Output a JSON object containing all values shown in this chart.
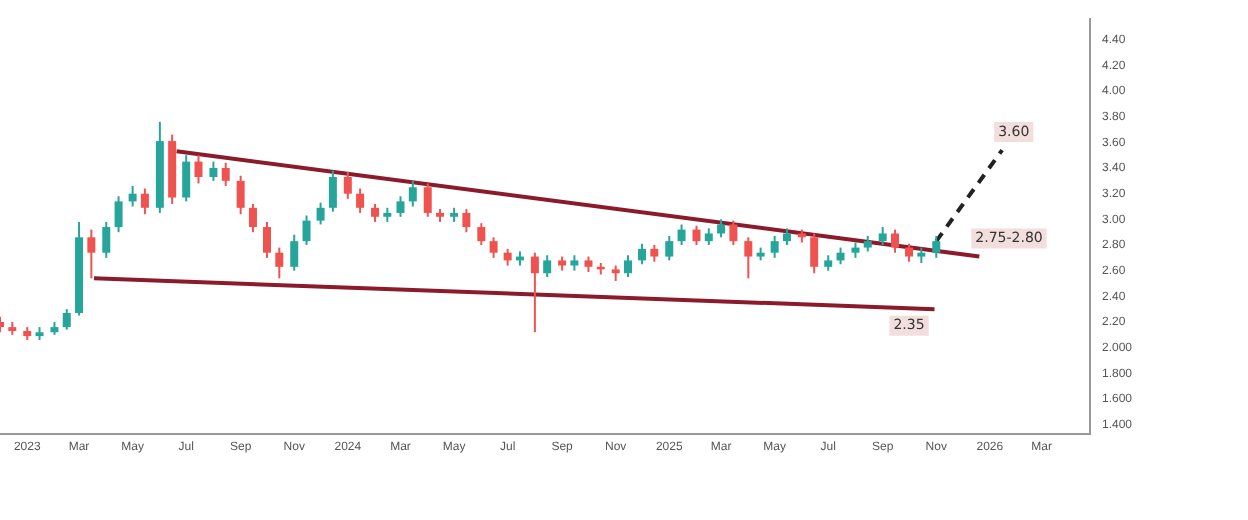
{
  "chart_data": {
    "type": "candlestick",
    "xlim": [
      "2022-12-01",
      "2026-04-25"
    ],
    "xticks": [
      {
        "value": "2023-01-01",
        "label": "2023"
      },
      {
        "value": "2023-03-01",
        "label": "Mar"
      },
      {
        "value": "2023-05-01",
        "label": "May"
      },
      {
        "value": "2023-07-01",
        "label": "Jul"
      },
      {
        "value": "2023-09-01",
        "label": "Sep"
      },
      {
        "value": "2023-11-01",
        "label": "Nov"
      },
      {
        "value": "2024-01-01",
        "label": "2024"
      },
      {
        "value": "2024-03-01",
        "label": "Mar"
      },
      {
        "value": "2024-05-01",
        "label": "May"
      },
      {
        "value": "2024-07-01",
        "label": "Jul"
      },
      {
        "value": "2024-09-01",
        "label": "Sep"
      },
      {
        "value": "2024-11-01",
        "label": "Nov"
      },
      {
        "value": "2025-01-01",
        "label": "2025"
      },
      {
        "value": "2025-03-01",
        "label": "Mar"
      },
      {
        "value": "2025-05-01",
        "label": "May"
      },
      {
        "value": "2025-07-01",
        "label": "Jul"
      },
      {
        "value": "2025-09-01",
        "label": "Sep"
      },
      {
        "value": "2025-11-01",
        "label": "Nov"
      },
      {
        "value": "2026-01-01",
        "label": "2026"
      },
      {
        "value": "2026-03-01",
        "label": "Mar"
      }
    ],
    "ylim": [
      1.33,
      4.56
    ],
    "yticks": [
      {
        "value": 1.4,
        "label": "1.400"
      },
      {
        "value": 1.6,
        "label": "1.600"
      },
      {
        "value": 1.8,
        "label": "1.800"
      },
      {
        "value": 2.0,
        "label": "2.000"
      },
      {
        "value": 2.2,
        "label": "2.20"
      },
      {
        "value": 2.4,
        "label": "2.40"
      },
      {
        "value": 2.6,
        "label": "2.60"
      },
      {
        "value": 2.8,
        "label": "2.80"
      },
      {
        "value": 3.0,
        "label": "3.00"
      },
      {
        "value": 3.2,
        "label": "3.20"
      },
      {
        "value": 3.4,
        "label": "3.40"
      },
      {
        "value": 3.6,
        "label": "3.60"
      },
      {
        "value": 3.8,
        "label": "3.80"
      },
      {
        "value": 4.0,
        "label": "4.00"
      },
      {
        "value": 4.2,
        "label": "4.20"
      },
      {
        "value": 4.4,
        "label": "4.40"
      }
    ],
    "grid": false,
    "legend": false,
    "x": [
      "2022-12-01",
      "2022-12-15",
      "2023-01-01",
      "2023-01-15",
      "2023-02-01",
      "2023-02-15",
      "2023-03-01",
      "2023-03-15",
      "2023-04-01",
      "2023-04-15",
      "2023-05-01",
      "2023-05-15",
      "2023-06-01",
      "2023-06-15",
      "2023-07-01",
      "2023-07-15",
      "2023-08-01",
      "2023-08-15",
      "2023-09-01",
      "2023-09-15",
      "2023-10-01",
      "2023-10-15",
      "2023-11-01",
      "2023-11-15",
      "2023-12-01",
      "2023-12-15",
      "2024-01-01",
      "2024-01-15",
      "2024-02-01",
      "2024-02-15",
      "2024-03-01",
      "2024-03-15",
      "2024-04-01",
      "2024-04-15",
      "2024-05-01",
      "2024-05-15",
      "2024-06-01",
      "2024-06-15",
      "2024-07-01",
      "2024-07-15",
      "2024-08-01",
      "2024-08-15",
      "2024-09-01",
      "2024-09-15",
      "2024-10-01",
      "2024-10-15",
      "2024-11-01",
      "2024-11-15",
      "2024-12-01",
      "2024-12-15",
      "2025-01-01",
      "2025-01-15",
      "2025-02-01",
      "2025-02-15",
      "2025-03-01",
      "2025-03-15",
      "2025-04-01",
      "2025-04-15",
      "2025-05-01",
      "2025-05-15",
      "2025-06-01",
      "2025-06-15",
      "2025-07-01",
      "2025-07-15",
      "2025-08-01",
      "2025-08-15",
      "2025-09-01",
      "2025-09-15",
      "2025-10-01",
      "2025-10-15",
      "2025-11-01"
    ],
    "ohlc": [
      [
        2.2,
        2.24,
        2.12,
        2.16
      ],
      [
        2.16,
        2.2,
        2.1,
        2.13
      ],
      [
        2.13,
        2.16,
        2.06,
        2.09
      ],
      [
        2.09,
        2.16,
        2.06,
        2.12
      ],
      [
        2.12,
        2.2,
        2.1,
        2.16
      ],
      [
        2.16,
        2.3,
        2.14,
        2.27
      ],
      [
        2.27,
        2.98,
        2.25,
        2.86
      ],
      [
        2.86,
        2.92,
        2.54,
        2.74
      ],
      [
        2.74,
        2.98,
        2.7,
        2.94
      ],
      [
        2.94,
        3.18,
        2.9,
        3.14
      ],
      [
        3.14,
        3.26,
        3.1,
        3.2
      ],
      [
        3.2,
        3.24,
        3.04,
        3.09
      ],
      [
        3.09,
        3.76,
        3.05,
        3.61
      ],
      [
        3.61,
        3.66,
        3.12,
        3.17
      ],
      [
        3.17,
        3.5,
        3.14,
        3.45
      ],
      [
        3.45,
        3.5,
        3.28,
        3.33
      ],
      [
        3.33,
        3.45,
        3.3,
        3.4
      ],
      [
        3.4,
        3.44,
        3.26,
        3.3
      ],
      [
        3.3,
        3.34,
        3.04,
        3.09
      ],
      [
        3.09,
        3.12,
        2.9,
        2.94
      ],
      [
        2.94,
        2.98,
        2.7,
        2.74
      ],
      [
        2.74,
        2.78,
        2.54,
        2.63
      ],
      [
        2.63,
        2.88,
        2.6,
        2.83
      ],
      [
        2.83,
        3.03,
        2.8,
        2.99
      ],
      [
        2.99,
        3.13,
        2.96,
        3.09
      ],
      [
        3.09,
        3.38,
        3.06,
        3.33
      ],
      [
        3.33,
        3.37,
        3.16,
        3.2
      ],
      [
        3.2,
        3.24,
        3.05,
        3.09
      ],
      [
        3.09,
        3.12,
        2.98,
        3.02
      ],
      [
        3.02,
        3.09,
        2.98,
        3.05
      ],
      [
        3.05,
        3.18,
        3.02,
        3.14
      ],
      [
        3.14,
        3.3,
        3.1,
        3.25
      ],
      [
        3.25,
        3.28,
        3.02,
        3.05
      ],
      [
        3.05,
        3.08,
        2.98,
        3.02
      ],
      [
        3.02,
        3.09,
        2.98,
        3.05
      ],
      [
        3.05,
        3.08,
        2.9,
        2.94
      ],
      [
        2.94,
        2.97,
        2.8,
        2.83
      ],
      [
        2.83,
        2.86,
        2.7,
        2.74
      ],
      [
        2.74,
        2.77,
        2.64,
        2.68
      ],
      [
        2.68,
        2.75,
        2.64,
        2.71
      ],
      [
        2.71,
        2.74,
        2.12,
        2.58
      ],
      [
        2.58,
        2.72,
        2.55,
        2.68
      ],
      [
        2.68,
        2.71,
        2.6,
        2.64
      ],
      [
        2.64,
        2.72,
        2.6,
        2.68
      ],
      [
        2.68,
        2.71,
        2.59,
        2.63
      ],
      [
        2.63,
        2.66,
        2.57,
        2.61
      ],
      [
        2.61,
        2.64,
        2.52,
        2.58
      ],
      [
        2.58,
        2.72,
        2.55,
        2.68
      ],
      [
        2.68,
        2.81,
        2.65,
        2.77
      ],
      [
        2.77,
        2.8,
        2.67,
        2.71
      ],
      [
        2.71,
        2.87,
        2.68,
        2.83
      ],
      [
        2.83,
        2.96,
        2.8,
        2.92
      ],
      [
        2.92,
        2.95,
        2.8,
        2.83
      ],
      [
        2.83,
        2.93,
        2.8,
        2.89
      ],
      [
        2.89,
        3.0,
        2.86,
        2.96
      ],
      [
        2.96,
        2.99,
        2.8,
        2.83
      ],
      [
        2.83,
        2.86,
        2.54,
        2.71
      ],
      [
        2.71,
        2.78,
        2.68,
        2.74
      ],
      [
        2.74,
        2.87,
        2.7,
        2.83
      ],
      [
        2.83,
        2.93,
        2.8,
        2.89
      ],
      [
        2.89,
        2.92,
        2.82,
        2.86
      ],
      [
        2.86,
        2.89,
        2.58,
        2.63
      ],
      [
        2.63,
        2.72,
        2.6,
        2.68
      ],
      [
        2.68,
        2.78,
        2.65,
        2.74
      ],
      [
        2.74,
        2.82,
        2.7,
        2.78
      ],
      [
        2.78,
        2.87,
        2.75,
        2.83
      ],
      [
        2.83,
        2.94,
        2.8,
        2.89
      ],
      [
        2.89,
        2.92,
        2.74,
        2.78
      ],
      [
        2.78,
        2.81,
        2.67,
        2.71
      ],
      [
        2.71,
        2.78,
        2.66,
        2.74
      ],
      [
        2.74,
        2.87,
        2.7,
        2.83
      ]
    ],
    "series": [
      {
        "type": "line",
        "color": "#8b1a2b",
        "x": [
          "2023-06-20",
          "2025-12-20"
        ],
        "values": [
          3.53,
          2.71
        ]
      },
      {
        "type": "line",
        "color": "#8b1a2b",
        "x": [
          "2023-03-18",
          "2025-10-30"
        ],
        "values": [
          2.54,
          2.3
        ]
      },
      {
        "type": "line",
        "color": "#222222",
        "line_style": "dashed",
        "x": [
          "2025-11-01",
          "2026-01-15"
        ],
        "values": [
          2.83,
          3.54
        ]
      }
    ],
    "annotations": [
      {
        "text": "3.60",
        "x": "2026-01-15",
        "y": 3.54
      },
      {
        "text": "2.75-2.80",
        "x": "2025-12-20",
        "y": 2.71
      },
      {
        "text": "2.35",
        "x": "2025-10-01",
        "y": 2.31
      }
    ]
  }
}
